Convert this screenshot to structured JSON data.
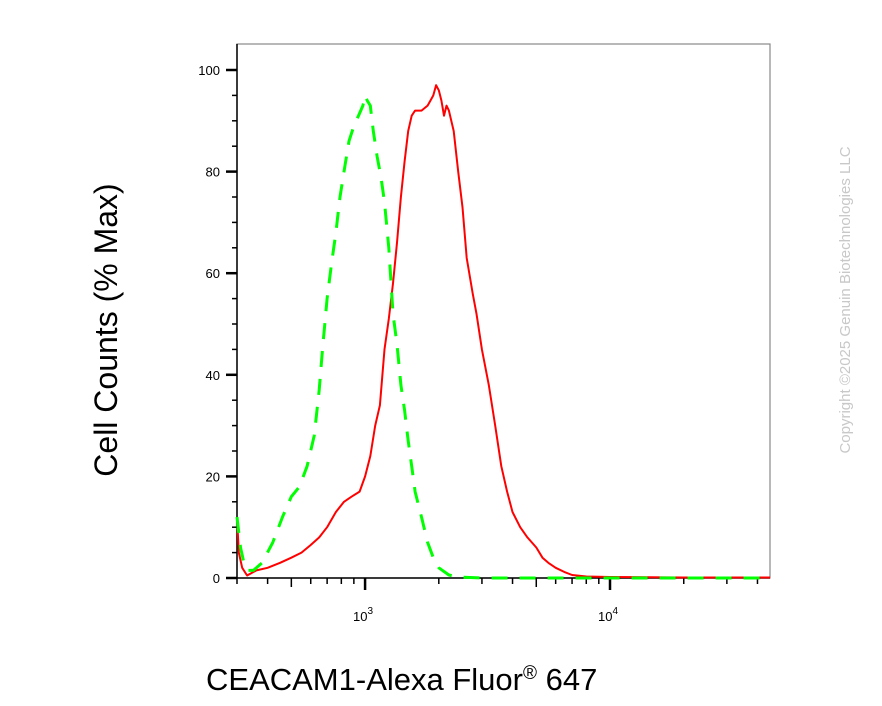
{
  "chart_data": {
    "type": "line",
    "title": "",
    "xlabel": "CEACAM1-Alexa Fluor",
    "xlabel_superscript": "®",
    "xlabel_suffix": " 647",
    "ylabel": "Cell Counts (% Max)",
    "xscale": "log",
    "xlim": [
      300,
      45000
    ],
    "ylim": [
      0,
      100
    ],
    "y_ticks": [
      0,
      20,
      40,
      60,
      80,
      100
    ],
    "x_ticks": [
      {
        "value": 1000,
        "base": "10",
        "exp": "3"
      },
      {
        "value": 10000,
        "base": "10",
        "exp": "4"
      }
    ],
    "grid": false,
    "series": [
      {
        "style": "solid",
        "color": "#ff0000",
        "points": [
          [
            300,
            12
          ],
          [
            305,
            5
          ],
          [
            315,
            2
          ],
          [
            330,
            0.5
          ],
          [
            360,
            1.5
          ],
          [
            400,
            2
          ],
          [
            450,
            3
          ],
          [
            500,
            4
          ],
          [
            550,
            5
          ],
          [
            600,
            6.5
          ],
          [
            650,
            8
          ],
          [
            700,
            10
          ],
          [
            760,
            13
          ],
          [
            820,
            15
          ],
          [
            880,
            16
          ],
          [
            950,
            17
          ],
          [
            1000,
            20
          ],
          [
            1050,
            24
          ],
          [
            1100,
            30
          ],
          [
            1150,
            34
          ],
          [
            1200,
            45
          ],
          [
            1250,
            51
          ],
          [
            1300,
            58
          ],
          [
            1350,
            66
          ],
          [
            1400,
            75
          ],
          [
            1450,
            82
          ],
          [
            1500,
            88
          ],
          [
            1550,
            91
          ],
          [
            1600,
            92
          ],
          [
            1700,
            92
          ],
          [
            1800,
            93
          ],
          [
            1850,
            94
          ],
          [
            1900,
            95
          ],
          [
            1950,
            97
          ],
          [
            2000,
            96
          ],
          [
            2050,
            94
          ],
          [
            2100,
            91
          ],
          [
            2150,
            93
          ],
          [
            2200,
            92
          ],
          [
            2300,
            88
          ],
          [
            2400,
            80
          ],
          [
            2500,
            73
          ],
          [
            2600,
            63
          ],
          [
            2750,
            56
          ],
          [
            2850,
            52
          ],
          [
            3000,
            45
          ],
          [
            3200,
            38
          ],
          [
            3400,
            30
          ],
          [
            3600,
            22
          ],
          [
            3800,
            17
          ],
          [
            4000,
            13
          ],
          [
            4300,
            10
          ],
          [
            4600,
            8
          ],
          [
            5000,
            6
          ],
          [
            5300,
            4
          ],
          [
            5600,
            3
          ],
          [
            6000,
            2
          ],
          [
            6500,
            1.2
          ],
          [
            7000,
            0.6
          ],
          [
            8000,
            0.3
          ],
          [
            10000,
            0.2
          ],
          [
            20000,
            0.1
          ],
          [
            45000,
            0.1
          ]
        ]
      },
      {
        "style": "dashed",
        "color": "#00ff00",
        "points": [
          [
            300,
            12
          ],
          [
            310,
            6
          ],
          [
            320,
            3
          ],
          [
            330,
            1.5
          ],
          [
            350,
            1.5
          ],
          [
            380,
            3
          ],
          [
            420,
            7
          ],
          [
            460,
            12
          ],
          [
            500,
            16
          ],
          [
            540,
            18
          ],
          [
            580,
            22
          ],
          [
            620,
            28
          ],
          [
            650,
            37
          ],
          [
            670,
            45
          ],
          [
            700,
            55
          ],
          [
            730,
            62
          ],
          [
            760,
            68
          ],
          [
            790,
            75
          ],
          [
            820,
            80
          ],
          [
            860,
            86
          ],
          [
            900,
            89
          ],
          [
            940,
            91
          ],
          [
            980,
            93
          ],
          [
            1000,
            95
          ],
          [
            1020,
            94
          ],
          [
            1050,
            93
          ],
          [
            1080,
            88
          ],
          [
            1120,
            83
          ],
          [
            1160,
            79
          ],
          [
            1200,
            74
          ],
          [
            1250,
            65
          ],
          [
            1300,
            52
          ],
          [
            1350,
            46
          ],
          [
            1400,
            38
          ],
          [
            1450,
            33
          ],
          [
            1500,
            27
          ],
          [
            1550,
            22
          ],
          [
            1600,
            17
          ],
          [
            1700,
            12
          ],
          [
            1800,
            7
          ],
          [
            1900,
            4
          ],
          [
            2000,
            2
          ],
          [
            2200,
            0.6
          ],
          [
            2400,
            0.2
          ],
          [
            3000,
            0
          ],
          [
            10000,
            0
          ],
          [
            45000,
            0
          ]
        ]
      }
    ]
  },
  "copyright": "Copyright ©2025 Genuin Biotechnologies LLC"
}
